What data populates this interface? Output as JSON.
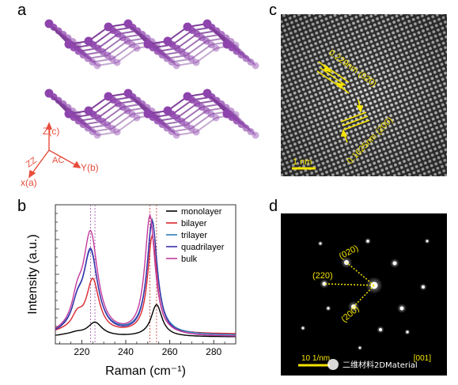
{
  "panels": {
    "a": "a",
    "b": "b",
    "c": "c",
    "d": "d"
  },
  "panel_a": {
    "axes": {
      "z": "Z(c)",
      "y": "Y(b)",
      "x": "x(a)",
      "zz": "ZZ",
      "ac": "AC"
    },
    "colors": {
      "atom": "#8e44ad",
      "bond": "#7d3c98",
      "axes": "#e74c3c"
    }
  },
  "panel_c": {
    "annotations": [
      "0.229nm (020)",
      "0.1625nm (200)"
    ],
    "scale_bar": "1 nm",
    "annotation_color": "#f5e400"
  },
  "panel_d": {
    "spot_labels": [
      "(020)",
      "(220)",
      "(200)"
    ],
    "scale_bar": "10 1/nm",
    "zone_axis": "[001]",
    "watermark": "二维材料2DMaterial"
  },
  "chart_data": {
    "type": "line",
    "title": "",
    "xlabel": "Raman (cm⁻¹)",
    "ylabel": "Intensity (a.u.)",
    "xlim": [
      208,
      290
    ],
    "ylim": [
      0,
      1.0
    ],
    "x_ticks": [
      220,
      240,
      260,
      280
    ],
    "legend_position": "top-right",
    "dotted_reference_lines": [
      224,
      226,
      251,
      254
    ],
    "series": [
      {
        "name": "monolayer",
        "color": "#000000",
        "peaks": [
          [
            226,
            0.1,
            4
          ],
          [
            254,
            0.23,
            3
          ],
          [
            218,
            0.02,
            4
          ]
        ],
        "base": 0.05
      },
      {
        "name": "bilayer",
        "color": "#d9262e",
        "peaks": [
          [
            225,
            0.38,
            3.5
          ],
          [
            252,
            0.7,
            2.5
          ],
          [
            218,
            0.1,
            3
          ]
        ],
        "base": 0.07
      },
      {
        "name": "trilayer",
        "color": "#2b7bb9",
        "peaks": [
          [
            224,
            0.58,
            4
          ],
          [
            252,
            0.82,
            2.8
          ],
          [
            218,
            0.14,
            3
          ]
        ],
        "base": 0.06
      },
      {
        "name": "quadrilayer",
        "color": "#3d2ea8",
        "peaks": [
          [
            224,
            0.6,
            4
          ],
          [
            252,
            0.82,
            2.8
          ],
          [
            218,
            0.15,
            3
          ]
        ],
        "base": 0.05
      },
      {
        "name": "bulk",
        "color": "#c23b9e",
        "peaks": [
          [
            224,
            0.72,
            4
          ],
          [
            251,
            0.86,
            2.8
          ],
          [
            218,
            0.18,
            3
          ]
        ],
        "base": 0.05
      }
    ]
  }
}
